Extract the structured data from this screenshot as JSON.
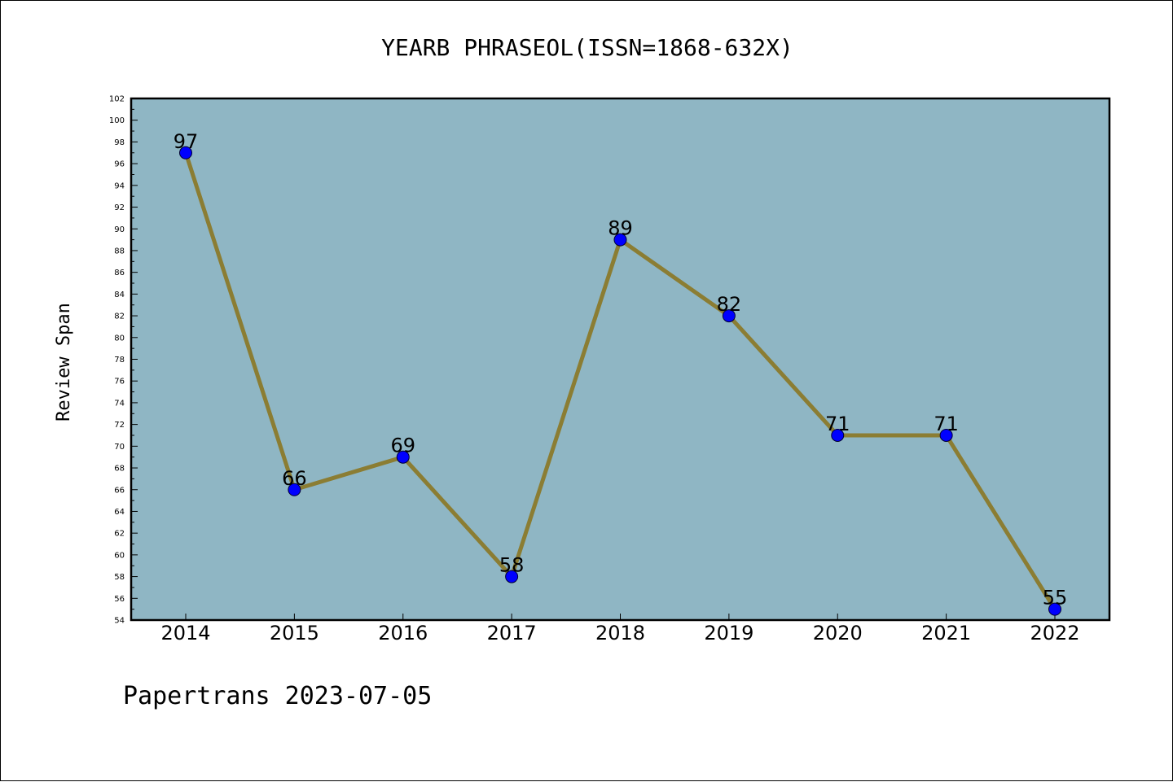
{
  "chart_data": {
    "type": "line",
    "title": "YEARB PHRASEOL(ISSN=1868-632X)",
    "xlabel": "",
    "ylabel": "Review Span",
    "categories": [
      "2014",
      "2015",
      "2016",
      "2017",
      "2018",
      "2019",
      "2020",
      "2021",
      "2022"
    ],
    "series": [
      {
        "values": [
          97,
          66,
          69,
          58,
          89,
          82,
          71,
          71,
          55
        ]
      }
    ],
    "ylim": [
      54,
      102
    ],
    "ytick_step": 2,
    "data_labels": true,
    "grid": false,
    "colors": {
      "plot_background": "#8fb6c4",
      "line": "#8b7d33",
      "marker": "#0000ff"
    }
  },
  "footer": "Papertrans 2023-07-05"
}
